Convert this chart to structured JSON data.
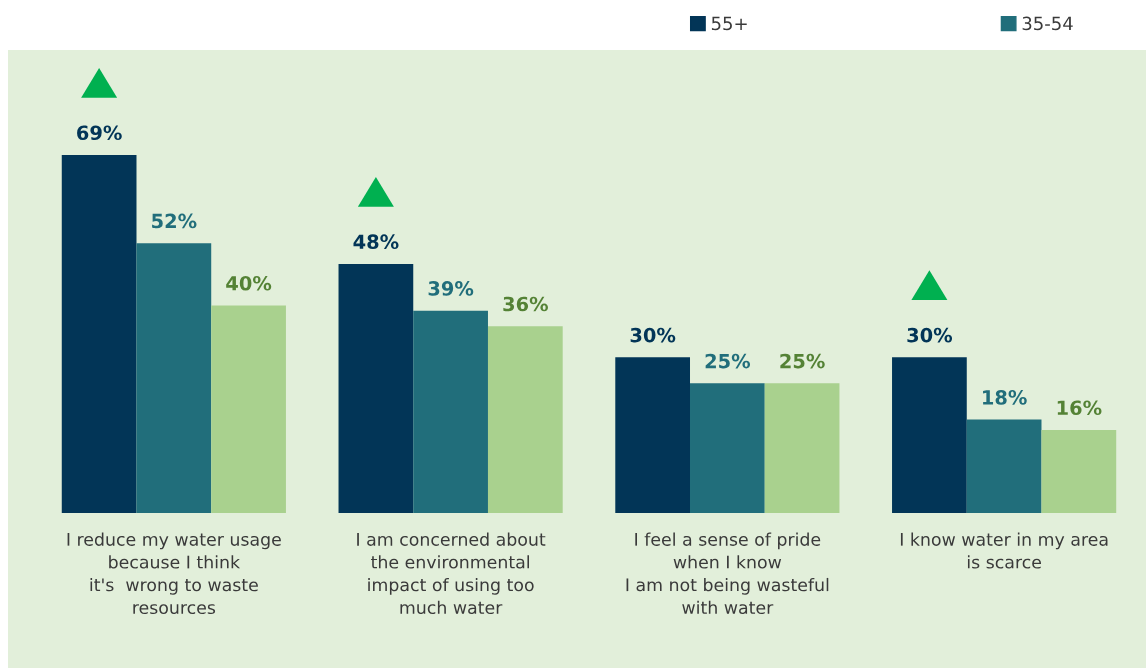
{
  "chart_data": {
    "type": "bar",
    "categories": [
      "I reduce my water usage\nbecause I think\nit's  wrong to waste\nresources",
      "I am concerned about\nthe environmental\nimpact of using too\nmuch water",
      "I feel a sense of pride\nwhen I know\nI am not being wasteful\nwith water",
      "I know water in my area\nis scarce"
    ],
    "series": [
      {
        "name": "55+",
        "color": "#023557",
        "values": [
          69,
          48,
          30,
          30
        ],
        "value_labels": [
          "69%",
          "48%",
          "30%",
          "30%"
        ]
      },
      {
        "name": "35-54",
        "color": "#216e7b",
        "values": [
          52,
          39,
          25,
          18
        ],
        "value_labels": [
          "52%",
          "39%",
          "25%",
          "18%"
        ]
      },
      {
        "color": "#a9d18e",
        "values": [
          40,
          36,
          25,
          16
        ],
        "value_labels": [
          "40%",
          "36%",
          "25%",
          "16%"
        ]
      }
    ],
    "legend": "top right"
  }
}
